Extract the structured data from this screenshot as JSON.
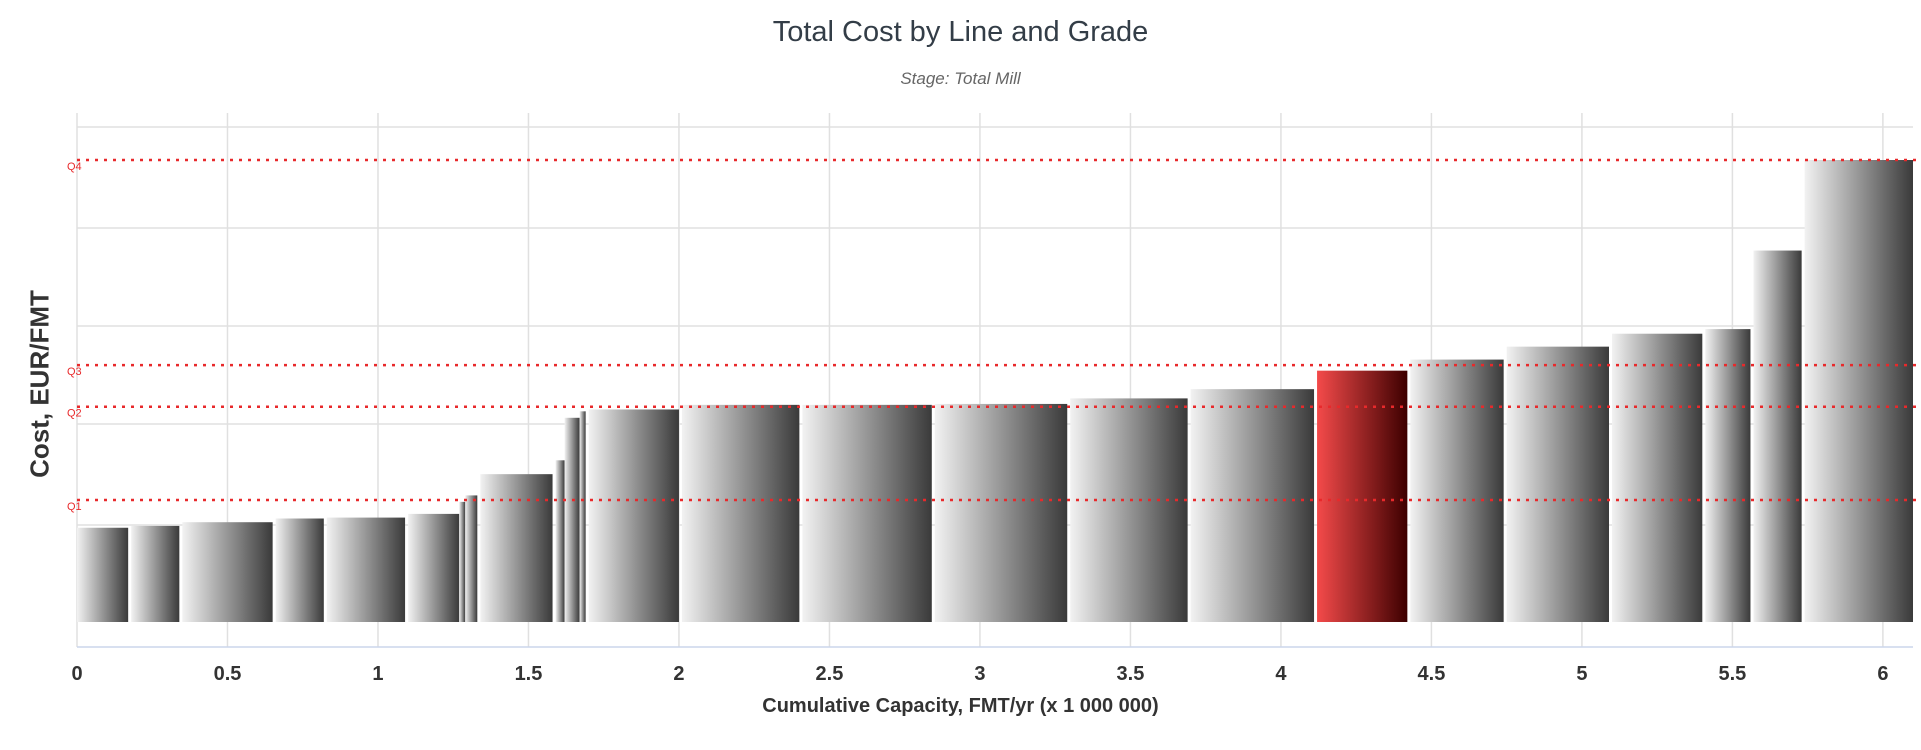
{
  "chart_data": {
    "type": "bar",
    "subtype": "variable-width cost curve",
    "title": "Total Cost by Line and Grade",
    "subtitle": "Stage: Total Mill",
    "xlabel": "Cumulative Capacity, FMT/yr (x 1 000 000)",
    "ylabel": "Cost, EUR/FMT",
    "xlim": [
      0,
      6.1
    ],
    "ylim": [
      -0.25,
      5.0
    ],
    "x_ticks": [
      0,
      0.5,
      1,
      1.5,
      2,
      2.5,
      3,
      3.5,
      4,
      4.5,
      5,
      5.5,
      6
    ],
    "x_tick_labels": [
      "0",
      "0.5",
      "1",
      "1.5",
      "2",
      "2.5",
      "3",
      "3.5",
      "4",
      "4.5",
      "5",
      "5.5",
      "6"
    ],
    "grid": true,
    "legend": "none",
    "y_tick_labels": "none",
    "quartiles": [
      {
        "label": "Q1",
        "value": 1.32
      },
      {
        "label": "Q2",
        "value": 2.33
      },
      {
        "label": "Q3",
        "value": 2.78
      },
      {
        "label": "Q4",
        "value": 5.0
      }
    ],
    "bars": [
      {
        "x_start": 0.0,
        "x_end": 0.17,
        "value": 1.02
      },
      {
        "x_start": 0.18,
        "x_end": 0.34,
        "value": 1.04
      },
      {
        "x_start": 0.35,
        "x_end": 0.65,
        "value": 1.08
      },
      {
        "x_start": 0.66,
        "x_end": 0.82,
        "value": 1.12
      },
      {
        "x_start": 0.83,
        "x_end": 1.09,
        "value": 1.13
      },
      {
        "x_start": 1.1,
        "x_end": 1.27,
        "value": 1.17
      },
      {
        "x_start": 1.27,
        "x_end": 1.29,
        "value": 1.3
      },
      {
        "x_start": 1.29,
        "x_end": 1.33,
        "value": 1.37
      },
      {
        "x_start": 1.34,
        "x_end": 1.58,
        "value": 1.6
      },
      {
        "x_start": 1.59,
        "x_end": 1.62,
        "value": 1.75
      },
      {
        "x_start": 1.62,
        "x_end": 1.67,
        "value": 2.21
      },
      {
        "x_start": 1.67,
        "x_end": 1.69,
        "value": 2.28
      },
      {
        "x_start": 1.7,
        "x_end": 2.0,
        "value": 2.3
      },
      {
        "x_start": 2.01,
        "x_end": 2.4,
        "value": 2.35
      },
      {
        "x_start": 2.41,
        "x_end": 2.84,
        "value": 2.35
      },
      {
        "x_start": 2.85,
        "x_end": 3.29,
        "value": 2.36
      },
      {
        "x_start": 3.3,
        "x_end": 3.69,
        "value": 2.42
      },
      {
        "x_start": 3.7,
        "x_end": 4.11,
        "value": 2.52
      },
      {
        "x_start": 4.12,
        "x_end": 4.42,
        "value": 2.72,
        "highlight": true
      },
      {
        "x_start": 4.43,
        "x_end": 4.74,
        "value": 2.84
      },
      {
        "x_start": 4.75,
        "x_end": 5.09,
        "value": 2.98
      },
      {
        "x_start": 5.1,
        "x_end": 5.4,
        "value": 3.12
      },
      {
        "x_start": 5.41,
        "x_end": 5.56,
        "value": 3.17
      },
      {
        "x_start": 5.57,
        "x_end": 5.73,
        "value": 4.02
      },
      {
        "x_start": 5.74,
        "x_end": 6.1,
        "value": 5.0
      }
    ]
  },
  "colors": {
    "bar_light": "#f2f2f2",
    "bar_dark": "#3a3a3a",
    "highlight_light": "#f44a4a",
    "highlight_dark": "#3d0000",
    "quartile_line": "#e8292b",
    "grid": "#e0e0e0",
    "axis": "#ccd6eb",
    "tick_text": "#333333"
  }
}
